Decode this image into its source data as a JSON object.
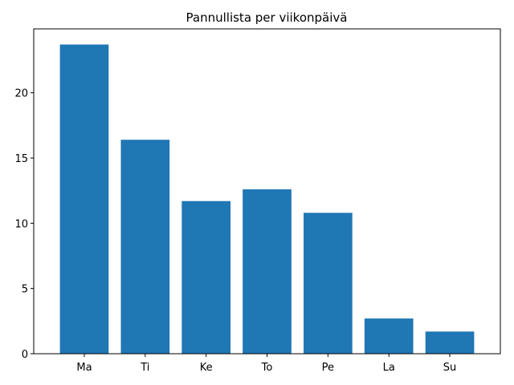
{
  "chart_data": {
    "type": "bar",
    "title": "Pannullista per viikonpäivä",
    "xlabel": "",
    "ylabel": "",
    "categories": [
      "Ma",
      "Ti",
      "Ke",
      "To",
      "Pe",
      "La",
      "Su"
    ],
    "values": [
      23.7,
      16.4,
      11.7,
      12.6,
      10.8,
      2.7,
      1.7
    ],
    "ylim": [
      0,
      24.9
    ],
    "yticks": [
      0,
      5,
      10,
      15,
      20
    ],
    "grid": false,
    "bar_color": "#1f77b4"
  }
}
